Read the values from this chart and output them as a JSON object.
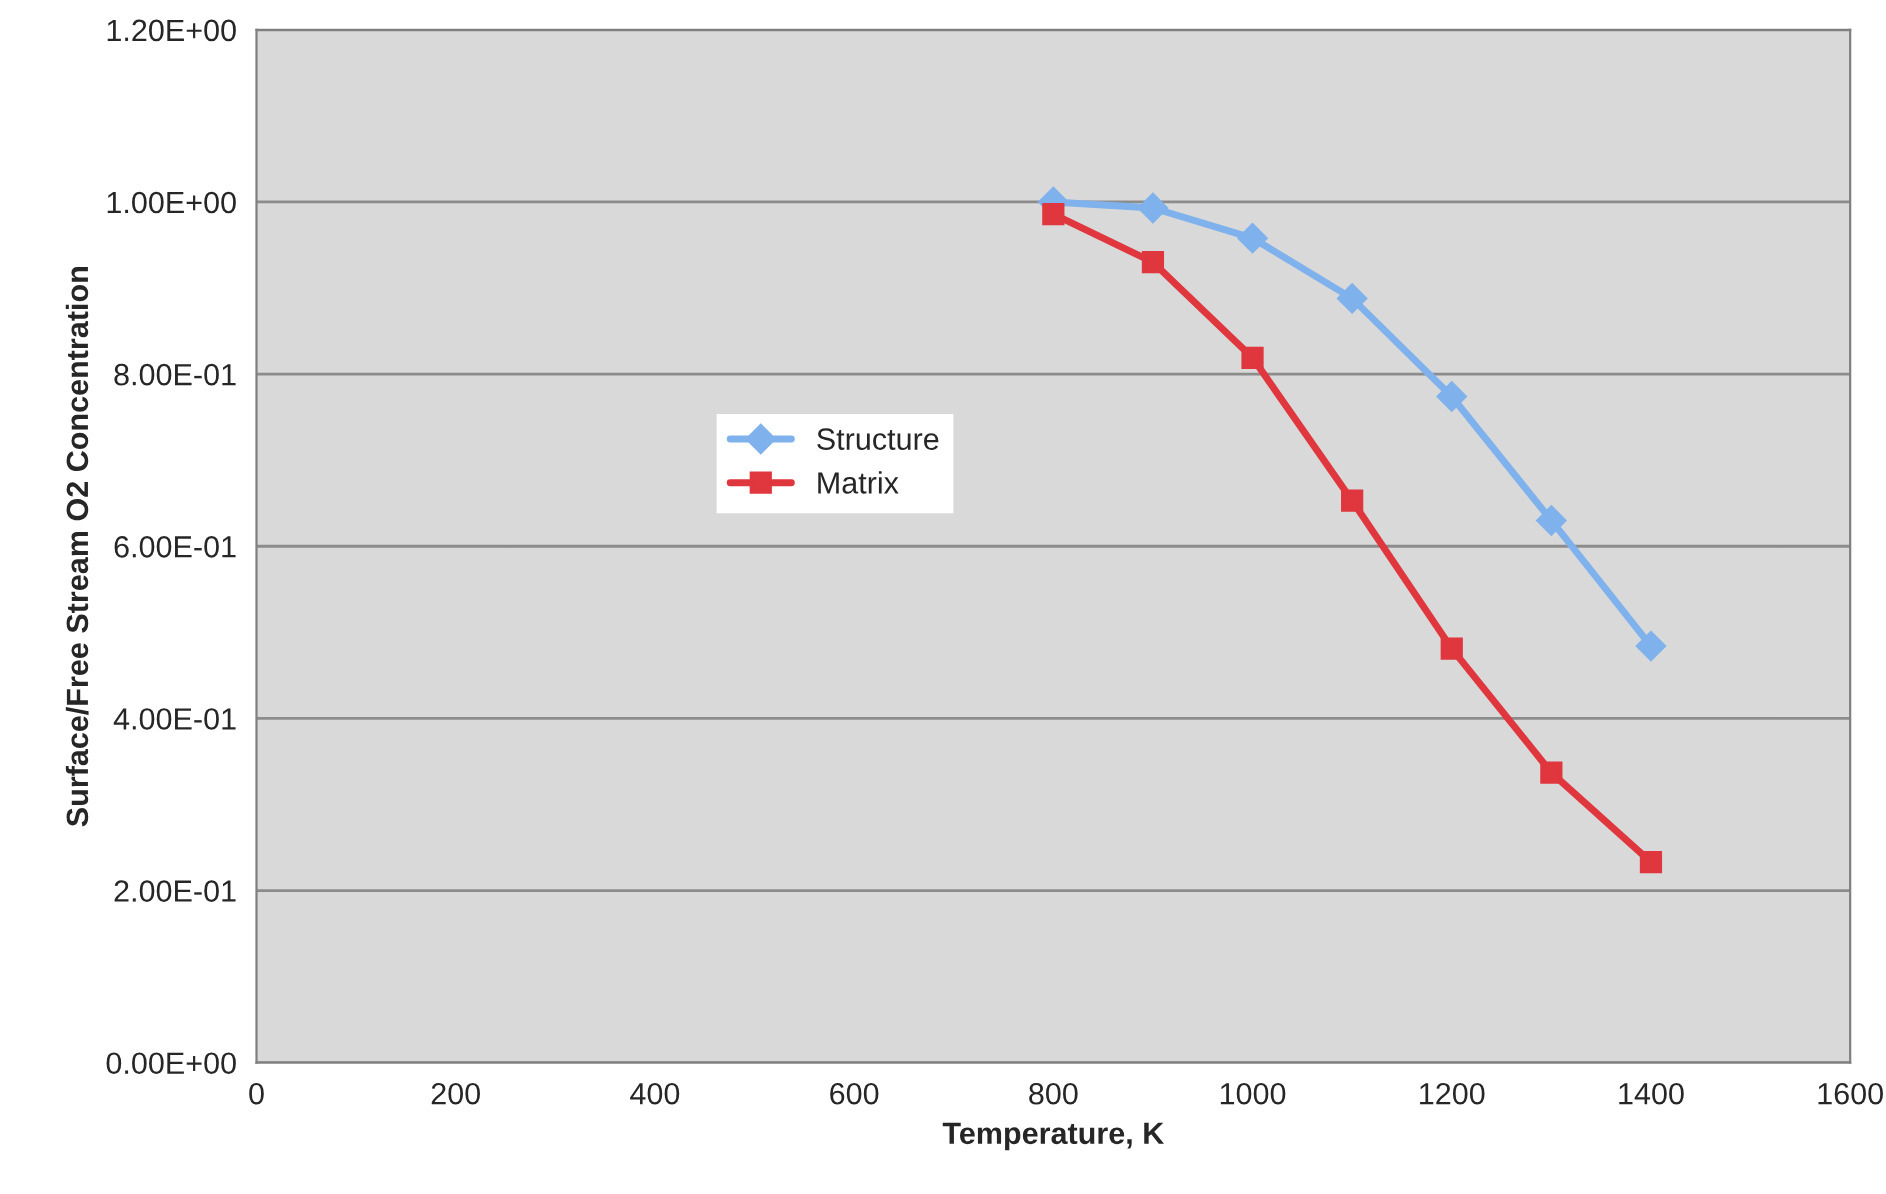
{
  "chart_data": {
    "type": "line",
    "xlabel": "Temperature, K",
    "ylabel": "Surface/Free Stream O2 Concentration",
    "x": [
      800,
      900,
      1000,
      1100,
      1200,
      1300,
      1400
    ],
    "series": [
      {
        "name": "Structure",
        "color": "#7fb2ec",
        "marker": "diamond",
        "values": [
          1.0,
          0.993,
          0.958,
          0.888,
          0.774,
          0.63,
          0.484
        ]
      },
      {
        "name": "Matrix",
        "color": "#e0363e",
        "marker": "square",
        "values": [
          0.986,
          0.93,
          0.819,
          0.653,
          0.481,
          0.337,
          0.233
        ]
      }
    ],
    "xlim": [
      0,
      1600
    ],
    "xticks": [
      0,
      200,
      400,
      600,
      800,
      1000,
      1200,
      1400,
      1600
    ],
    "ylim": [
      0,
      1.2
    ],
    "yticks": [
      {
        "value": 0,
        "label": "0.00E+00"
      },
      {
        "value": 0.2,
        "label": "2.00E-01"
      },
      {
        "value": 0.4,
        "label": "4.00E-01"
      },
      {
        "value": 0.6,
        "label": "6.00E-01"
      },
      {
        "value": 0.8,
        "label": "8.00E-01"
      },
      {
        "value": 1.0,
        "label": "1.00E+00"
      },
      {
        "value": 1.2,
        "label": "1.20E+00"
      }
    ],
    "grid": "y",
    "legend": "center left",
    "line_style": "solid"
  }
}
